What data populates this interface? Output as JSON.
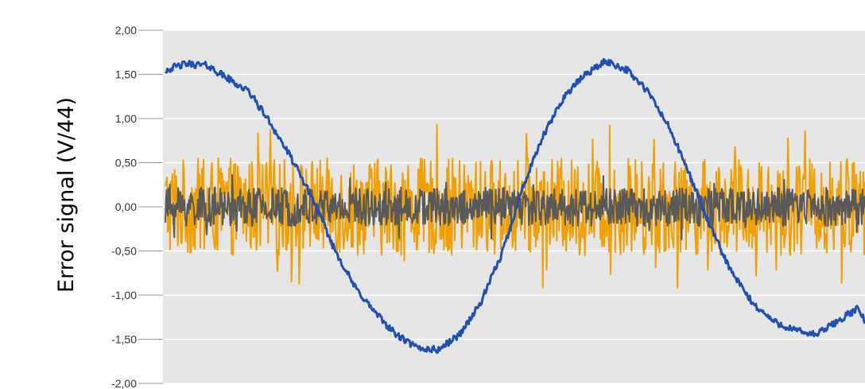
{
  "chart_data": {
    "type": "line",
    "title": "",
    "xlabel": "",
    "ylabel": "Error signal (V/44)",
    "ylim": [
      -2.0,
      2.0
    ],
    "yticks": [
      "2,00",
      "1,50",
      "1,00",
      "0,50",
      "0,00",
      "-0,50",
      "-1,00",
      "-1,50",
      "-2,00"
    ],
    "ytick_values": [
      2.0,
      1.5,
      1.0,
      0.5,
      0.0,
      -0.5,
      -1.0,
      -1.5,
      -2.0
    ],
    "xlim": [
      0,
      1000
    ],
    "grid": true,
    "colors": {
      "plot_bg": "#e5e5e5",
      "grid": "#ffffff"
    },
    "series": [
      {
        "color": "#f0a000",
        "style": "noise",
        "amplitude": 0.55,
        "points": 900
      },
      {
        "color": "#595959",
        "style": "noise",
        "amplitude": 0.22,
        "points": 1100
      },
      {
        "color": "#1f50b4",
        "style": "sine",
        "x": [
          0,
          30,
          60,
          90,
          120,
          150,
          180,
          210,
          240,
          270,
          300,
          330,
          360,
          390,
          420,
          450,
          480,
          510,
          540,
          570,
          600,
          630,
          660,
          690,
          720,
          750,
          780,
          810,
          840,
          870,
          900,
          930,
          960,
          990,
          1000
        ],
        "y": [
          1.55,
          1.62,
          1.6,
          1.45,
          1.3,
          0.95,
          0.55,
          0.1,
          -0.45,
          -0.9,
          -1.2,
          -1.45,
          -1.6,
          -1.62,
          -1.45,
          -1.1,
          -0.55,
          0.2,
          0.8,
          1.25,
          1.5,
          1.65,
          1.55,
          1.3,
          0.9,
          0.35,
          -0.25,
          -0.75,
          -1.1,
          -1.3,
          -1.4,
          -1.45,
          -1.3,
          -1.15,
          -1.3
        ]
      }
    ]
  }
}
